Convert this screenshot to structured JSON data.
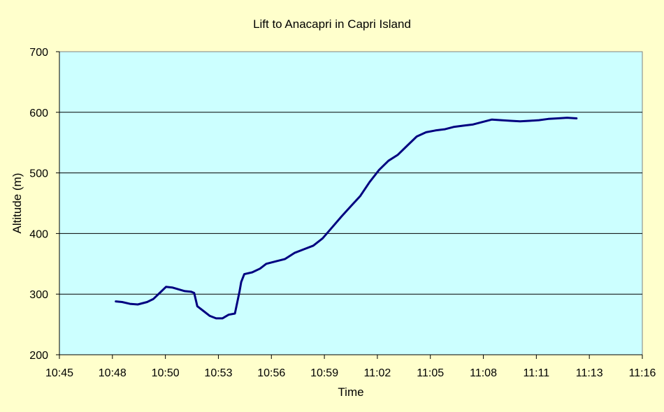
{
  "chart_data": {
    "type": "line",
    "title": "Lift to Anacapri in Capri Island",
    "xlabel": "Time",
    "ylabel": "Altitude (m)",
    "xlim": [
      "10:45",
      "11:16"
    ],
    "ylim": [
      200,
      700
    ],
    "x_ticks": [
      "10:45",
      "10:48",
      "10:50",
      "10:53",
      "10:56",
      "10:59",
      "11:02",
      "11:05",
      "11:08",
      "11:11",
      "11:13",
      "11:16"
    ],
    "y_ticks": [
      200,
      300,
      400,
      500,
      600,
      700
    ],
    "grid": "horizontal",
    "legend": "none",
    "series": [
      {
        "color": "#000080",
        "x": [
          "10:48:00",
          "10:48:20",
          "10:48:45",
          "10:49:10",
          "10:49:40",
          "10:50:00",
          "10:50:20",
          "10:50:40",
          "10:51:00",
          "10:51:20",
          "10:51:40",
          "10:52:00",
          "10:52:10",
          "10:52:20",
          "10:52:40",
          "10:53:00",
          "10:53:20",
          "10:53:40",
          "10:54:00",
          "10:54:20",
          "10:54:35",
          "10:54:40",
          "10:54:50",
          "10:55:15",
          "10:55:40",
          "10:56:00",
          "10:56:30",
          "10:57:00",
          "10:57:30",
          "10:58:00",
          "10:58:30",
          "10:59:00",
          "10:59:30",
          "11:00:00",
          "11:00:30",
          "11:01:00",
          "11:01:30",
          "11:02:00",
          "11:02:30",
          "11:03:00",
          "11:03:30",
          "11:04:00",
          "11:04:30",
          "11:05:00",
          "11:05:30",
          "11:06:00",
          "11:06:30",
          "11:07:00",
          "11:07:30",
          "11:08:00",
          "11:08:30",
          "11:09:00",
          "11:09:30",
          "11:10:00",
          "11:10:30",
          "11:11:00",
          "11:11:30",
          "11:12:00",
          "11:12:30"
        ],
        "values": [
          288,
          287,
          284,
          283,
          287,
          292,
          302,
          312,
          311,
          308,
          305,
          304,
          302,
          280,
          272,
          264,
          260,
          260,
          266,
          268,
          305,
          320,
          333,
          336,
          342,
          350,
          354,
          358,
          368,
          374,
          380,
          392,
          410,
          428,
          445,
          462,
          485,
          505,
          520,
          530,
          545,
          560,
          567,
          570,
          572,
          576,
          578,
          580,
          584,
          588,
          587,
          586,
          585,
          586,
          587,
          589,
          590,
          591,
          590
        ]
      }
    ]
  }
}
